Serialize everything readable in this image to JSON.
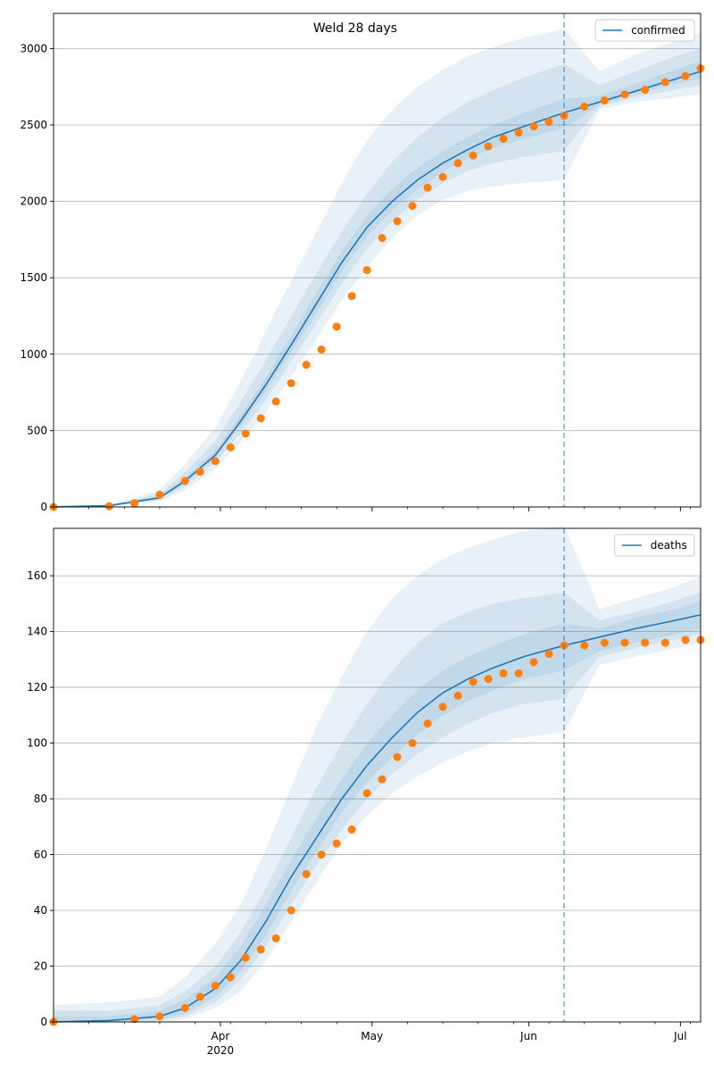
{
  "chart_data": [
    {
      "type": "line",
      "title": "Weld 28 days",
      "legend": {
        "label": "confirmed",
        "placement": "top-right"
      },
      "ylim": [
        0,
        3230
      ],
      "yticks": [
        0,
        500,
        1000,
        1500,
        2000,
        2500,
        3000
      ],
      "grid": "horizontal",
      "forecast_start": "2020-06-08",
      "model_curve": {
        "x": [
          "2020-02-28",
          "2020-03-10",
          "2020-03-20",
          "2020-03-25",
          "2020-03-31",
          "2020-04-05",
          "2020-04-10",
          "2020-04-15",
          "2020-04-20",
          "2020-04-25",
          "2020-04-30",
          "2020-05-05",
          "2020-05-10",
          "2020-05-15",
          "2020-05-20",
          "2020-05-25",
          "2020-05-31",
          "2020-06-08",
          "2020-06-15",
          "2020-06-22",
          "2020-06-30",
          "2020-07-05"
        ],
        "y": [
          0,
          8,
          60,
          170,
          340,
          560,
          800,
          1060,
          1330,
          1600,
          1830,
          2000,
          2140,
          2250,
          2340,
          2420,
          2490,
          2580,
          2650,
          2720,
          2800,
          2850
        ]
      },
      "bands": [
        {
          "lower": [
            0,
            4,
            35,
            110,
            250,
            420,
            620,
            850,
            1100,
            1350,
            1570,
            1760,
            1910,
            2010,
            2070,
            2100,
            2120,
            2140,
            2600,
            2650,
            2680,
            2700
          ],
          "upper": [
            10,
            14,
            110,
            280,
            520,
            820,
            1150,
            1480,
            1800,
            2120,
            2400,
            2600,
            2750,
            2860,
            2950,
            3010,
            3070,
            3130,
            2850,
            2960,
            3050,
            3100
          ]
        },
        {
          "lower": [
            0,
            5,
            45,
            135,
            290,
            480,
            700,
            950,
            1200,
            1460,
            1690,
            1870,
            2010,
            2120,
            2200,
            2250,
            2290,
            2330,
            2620,
            2680,
            2730,
            2760
          ],
          "upper": [
            8,
            12,
            85,
            230,
            430,
            690,
            960,
            1250,
            1530,
            1800,
            2050,
            2260,
            2420,
            2550,
            2650,
            2730,
            2810,
            2900,
            2760,
            2850,
            2950,
            3000
          ]
        },
        {
          "lower": [
            0,
            6,
            52,
            152,
            318,
            530,
            760,
            1010,
            1270,
            1540,
            1770,
            1940,
            2080,
            2190,
            2280,
            2350,
            2410,
            2480,
            2630,
            2700,
            2770,
            2800
          ],
          "upper": [
            5,
            10,
            70,
            195,
            370,
            600,
            850,
            1120,
            1400,
            1670,
            1910,
            2080,
            2220,
            2330,
            2420,
            2500,
            2580,
            2670,
            2690,
            2770,
            2860,
            2920
          ]
        }
      ],
      "observed": {
        "x": [
          "2020-02-28",
          "2020-03-10",
          "2020-03-15",
          "2020-03-20",
          "2020-03-25",
          "2020-03-28",
          "2020-03-31",
          "2020-04-03",
          "2020-04-06",
          "2020-04-09",
          "2020-04-12",
          "2020-04-15",
          "2020-04-18",
          "2020-04-21",
          "2020-04-24",
          "2020-04-27",
          "2020-04-30",
          "2020-05-03",
          "2020-05-06",
          "2020-05-09",
          "2020-05-12",
          "2020-05-15",
          "2020-05-18",
          "2020-05-21",
          "2020-05-24",
          "2020-05-27",
          "2020-05-30",
          "2020-06-02",
          "2020-06-05",
          "2020-06-08",
          "2020-06-12",
          "2020-06-16",
          "2020-06-20",
          "2020-06-24",
          "2020-06-28",
          "2020-07-02",
          "2020-07-05"
        ],
        "y": [
          0,
          5,
          25,
          80,
          170,
          230,
          300,
          390,
          480,
          580,
          690,
          810,
          930,
          1030,
          1180,
          1380,
          1550,
          1760,
          1870,
          1970,
          2090,
          2160,
          2250,
          2300,
          2360,
          2410,
          2450,
          2490,
          2520,
          2560,
          2620,
          2660,
          2700,
          2730,
          2780,
          2820,
          2870
        ]
      },
      "colors": {
        "line": "#1f77b4",
        "band": "#1f77b4",
        "points": "#ff7f0e"
      }
    },
    {
      "type": "line",
      "legend": {
        "label": "deaths",
        "placement": "top-right"
      },
      "ylim": [
        0,
        177
      ],
      "yticks": [
        0,
        20,
        40,
        60,
        80,
        100,
        120,
        140,
        160
      ],
      "grid": "horizontal",
      "forecast_start": "2020-06-08",
      "model_curve": {
        "x": [
          "2020-02-28",
          "2020-03-10",
          "2020-03-20",
          "2020-03-25",
          "2020-03-31",
          "2020-04-05",
          "2020-04-10",
          "2020-04-15",
          "2020-04-20",
          "2020-04-25",
          "2020-04-30",
          "2020-05-05",
          "2020-05-10",
          "2020-05-15",
          "2020-05-20",
          "2020-05-25",
          "2020-05-31",
          "2020-06-08",
          "2020-06-15",
          "2020-06-22",
          "2020-06-30",
          "2020-07-05"
        ],
        "y": [
          0,
          0.5,
          2,
          5,
          12,
          22,
          36,
          52,
          66,
          80,
          92,
          102,
          111,
          118,
          123,
          127,
          131,
          135,
          138,
          141,
          144,
          146
        ]
      },
      "bands": [
        {
          "lower": [
            0,
            0,
            0,
            1,
            5,
            11,
            22,
            36,
            50,
            64,
            74,
            82,
            88,
            93,
            97,
            100,
            102,
            104,
            128,
            131,
            134,
            136
          ],
          "upper": [
            6,
            7,
            9,
            16,
            28,
            42,
            62,
            84,
            106,
            124,
            140,
            152,
            160,
            166,
            170,
            173,
            176,
            178,
            148,
            152,
            156,
            160
          ]
        },
        {
          "lower": [
            0,
            0,
            0.5,
            2,
            7,
            15,
            27,
            42,
            56,
            69,
            80,
            89,
            96,
            102,
            107,
            111,
            114,
            116,
            131,
            134,
            137,
            139
          ],
          "upper": [
            4,
            4,
            6,
            11,
            20,
            32,
            48,
            66,
            84,
            100,
            114,
            126,
            136,
            143,
            147,
            150,
            152,
            154,
            144,
            147,
            151,
            154
          ]
        },
        {
          "lower": [
            0,
            0,
            1,
            3,
            9,
            18,
            31,
            47,
            61,
            75,
            86,
            95,
            103,
            110,
            115,
            119,
            123,
            126,
            133,
            136,
            139,
            141
          ],
          "upper": [
            2,
            2,
            4,
            8,
            16,
            27,
            42,
            58,
            73,
            87,
            100,
            110,
            119,
            126,
            131,
            135,
            139,
            143,
            141,
            145,
            148,
            151
          ]
        }
      ],
      "observed": {
        "x": [
          "2020-02-28",
          "2020-03-15",
          "2020-03-20",
          "2020-03-25",
          "2020-03-28",
          "2020-03-31",
          "2020-04-03",
          "2020-04-06",
          "2020-04-09",
          "2020-04-12",
          "2020-04-15",
          "2020-04-18",
          "2020-04-21",
          "2020-04-24",
          "2020-04-27",
          "2020-04-30",
          "2020-05-03",
          "2020-05-06",
          "2020-05-09",
          "2020-05-12",
          "2020-05-15",
          "2020-05-18",
          "2020-05-21",
          "2020-05-24",
          "2020-05-27",
          "2020-05-30",
          "2020-06-02",
          "2020-06-05",
          "2020-06-08",
          "2020-06-12",
          "2020-06-16",
          "2020-06-20",
          "2020-06-24",
          "2020-06-28",
          "2020-07-02",
          "2020-07-05"
        ],
        "y": [
          0,
          1,
          2,
          5,
          9,
          13,
          16,
          23,
          26,
          30,
          40,
          53,
          60,
          64,
          69,
          82,
          87,
          95,
          100,
          107,
          113,
          117,
          122,
          123,
          125,
          125,
          129,
          132,
          135,
          135,
          136,
          136,
          136,
          136,
          137,
          137
        ]
      },
      "colors": {
        "line": "#1f77b4",
        "band": "#1f77b4",
        "points": "#ff7f0e"
      }
    }
  ],
  "x_axis": {
    "range": [
      "2020-02-28",
      "2020-07-05"
    ],
    "ticks": [
      {
        "date": "2020-04-01",
        "label": "Apr",
        "sublabel": "2020"
      },
      {
        "date": "2020-05-01",
        "label": "May",
        "sublabel": ""
      },
      {
        "date": "2020-06-01",
        "label": "Jun",
        "sublabel": ""
      },
      {
        "date": "2020-07-01",
        "label": "Jul",
        "sublabel": ""
      }
    ]
  }
}
